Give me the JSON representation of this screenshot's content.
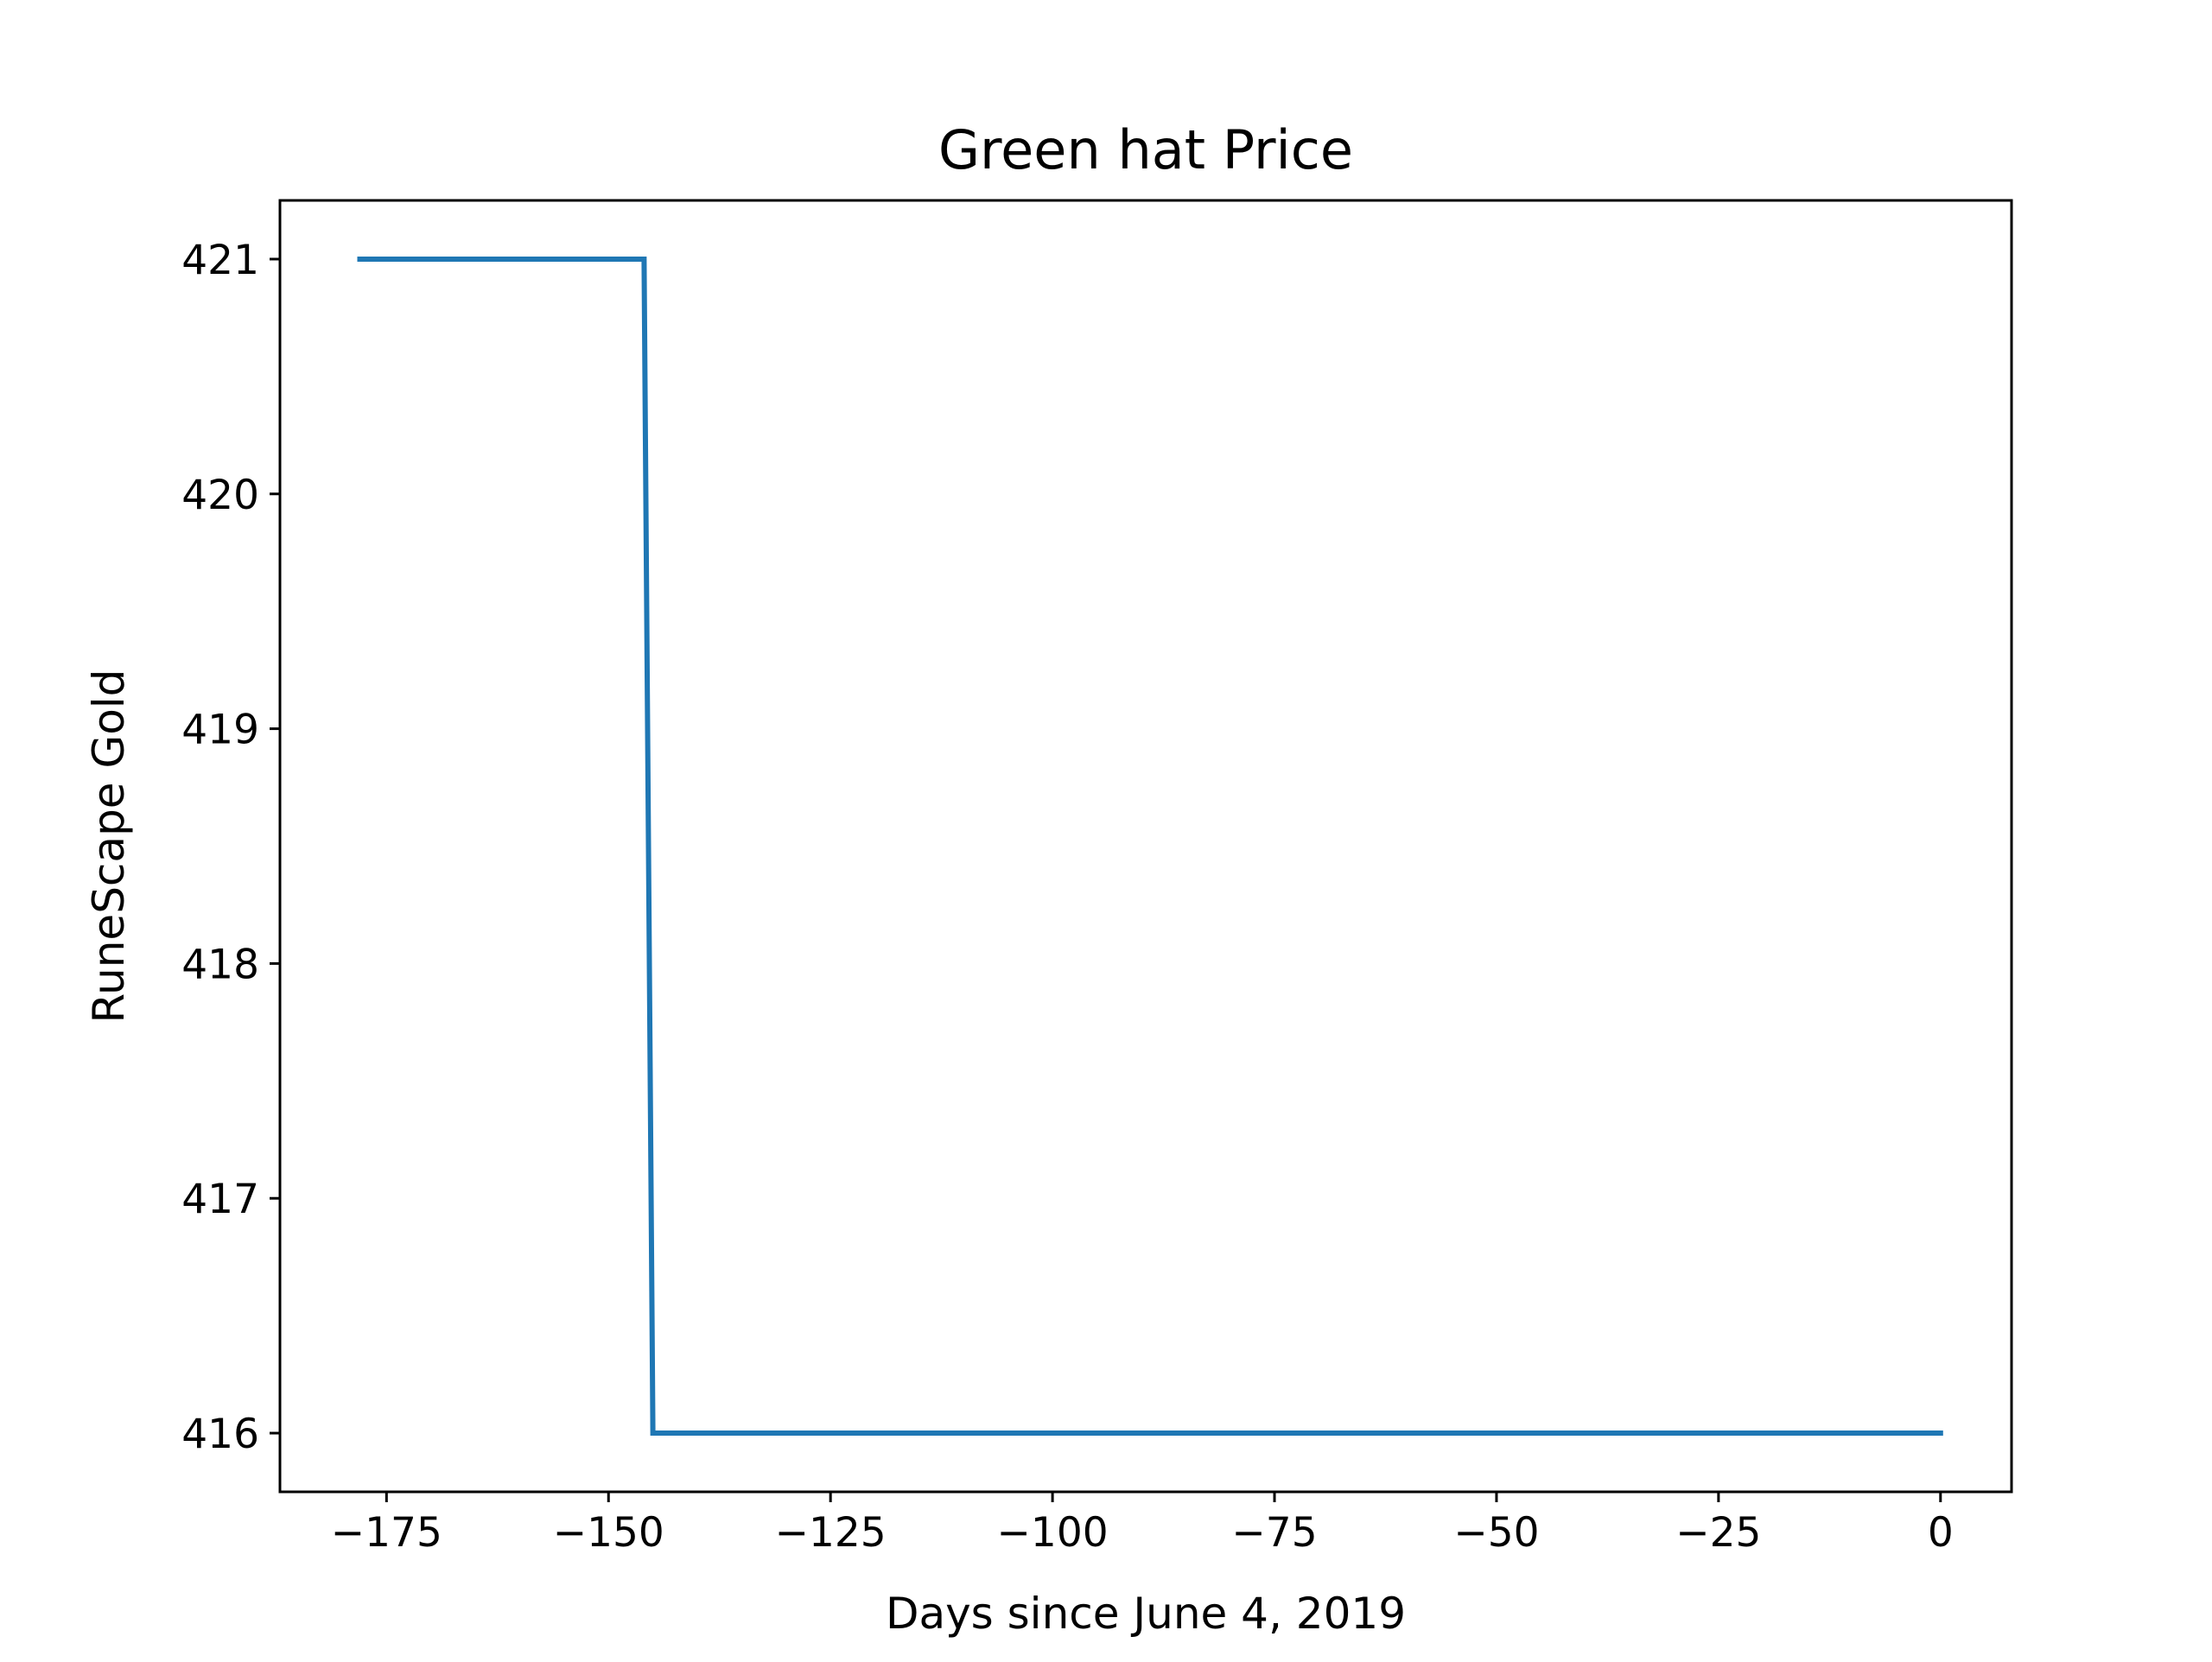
{
  "chart_data": {
    "type": "line",
    "title": "Green hat Price",
    "xlabel": "Days since June 4, 2019",
    "ylabel": "RuneScape Gold",
    "xlim": [
      -187,
      8
    ],
    "ylim": [
      415.75,
      421.25
    ],
    "xticks": [
      -175,
      -150,
      -125,
      -100,
      -75,
      -50,
      -25,
      0
    ],
    "xtick_labels": [
      "−175",
      "−150",
      "−125",
      "−100",
      "−75",
      "−50",
      "−25",
      "0"
    ],
    "yticks": [
      416,
      417,
      418,
      419,
      420,
      421
    ],
    "ytick_labels": [
      "416",
      "417",
      "418",
      "419",
      "420",
      "421"
    ],
    "grid": false,
    "series": [
      {
        "color": "#1f77b4",
        "x": [
          -178,
          -146,
          -145,
          0
        ],
        "y": [
          421,
          421,
          416,
          416
        ]
      }
    ]
  }
}
